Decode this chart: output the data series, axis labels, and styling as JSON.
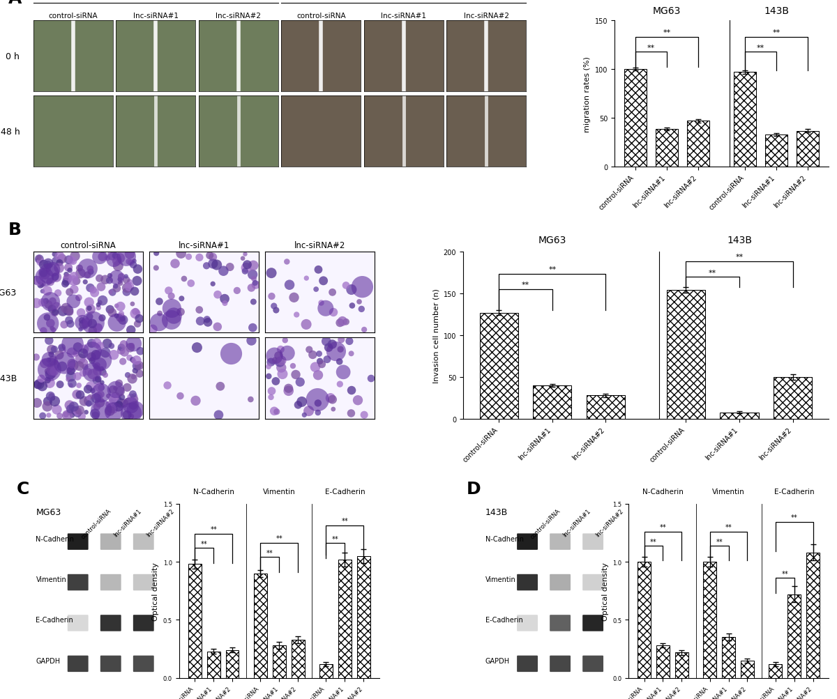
{
  "panel_A_bar": {
    "title_mg63": "MG63",
    "title_143b": "143B",
    "ylabel": "migration rates (%)",
    "ylim": [
      0,
      150
    ],
    "yticks": [
      0,
      50,
      100,
      150
    ],
    "categories": [
      "control-siRNA",
      "lnc-siRNA#1",
      "lnc-siRNA#2"
    ],
    "values_mg63": [
      100,
      39,
      47
    ],
    "errors_mg63": [
      1.5,
      1.5,
      1.5
    ],
    "values_143b": [
      97,
      33,
      37
    ],
    "errors_143b": [
      1.5,
      1.5,
      1.5
    ]
  },
  "panel_B_bar": {
    "title_mg63": "MG63",
    "title_143b": "143B",
    "ylabel": "Invasion cell number (n)",
    "ylim": [
      0,
      200
    ],
    "yticks": [
      0,
      50,
      100,
      150,
      200
    ],
    "categories": [
      "control-siRNA",
      "lnc-siRNA#1",
      "lnc-siRNA#2"
    ],
    "values_mg63": [
      127,
      40,
      28
    ],
    "errors_mg63": [
      3,
      2,
      2
    ],
    "values_143b": [
      154,
      8,
      50
    ],
    "errors_143b": [
      3,
      1,
      3
    ]
  },
  "panel_C_bar": {
    "title": "MG63",
    "ylabel": "Optical density",
    "ylim": [
      0,
      1.5
    ],
    "yticks": [
      0.0,
      0.5,
      1.0,
      1.5
    ],
    "proteins": [
      "N-Cadherin",
      "Vimentin",
      "E-Cadherin"
    ],
    "categories": [
      "control-siRNA",
      "lnc-siRNA#1",
      "lnc-siRNA#2"
    ],
    "values_ncadherin": [
      0.98,
      0.23,
      0.24
    ],
    "errors_ncadherin": [
      0.04,
      0.02,
      0.02
    ],
    "values_vimentin": [
      0.9,
      0.28,
      0.33
    ],
    "errors_vimentin": [
      0.03,
      0.03,
      0.03
    ],
    "values_ecadherin": [
      0.12,
      1.02,
      1.05
    ],
    "errors_ecadherin": [
      0.02,
      0.06,
      0.06
    ]
  },
  "panel_D_bar": {
    "title": "143B",
    "ylabel": "Optical density",
    "ylim": [
      0,
      1.5
    ],
    "yticks": [
      0.0,
      0.5,
      1.0,
      1.5
    ],
    "proteins": [
      "N-Cadherin",
      "Vimentin",
      "E-Cadherin"
    ],
    "categories": [
      "control-siRNA",
      "lnc-siRNA#1",
      "lnc-siRNA#2"
    ],
    "values_ncadherin": [
      1.0,
      0.28,
      0.22
    ],
    "errors_ncadherin": [
      0.04,
      0.02,
      0.02
    ],
    "values_vimentin": [
      1.0,
      0.35,
      0.15
    ],
    "errors_vimentin": [
      0.04,
      0.03,
      0.02
    ],
    "values_ecadherin": [
      0.12,
      0.72,
      1.08
    ],
    "errors_ecadherin": [
      0.02,
      0.07,
      0.07
    ]
  },
  "mg63_img_color_0h": [
    "#6b7a5a",
    "#6b7a5a",
    "#6b7a5a"
  ],
  "mg63_img_color_48h": [
    "#7a8a65",
    "#6b7a5a",
    "#6b7a5a"
  ],
  "b143_img_color_0h": [
    "#6a5a50",
    "#706050",
    "#706050"
  ],
  "b143_img_color_48h": [
    "#7a6a5a",
    "#706050",
    "#706050"
  ],
  "panel_labels": [
    "A",
    "B",
    "C",
    "D"
  ],
  "panel_label_fontsize": 18,
  "sig_text": "**",
  "bg_color": "#ffffff"
}
